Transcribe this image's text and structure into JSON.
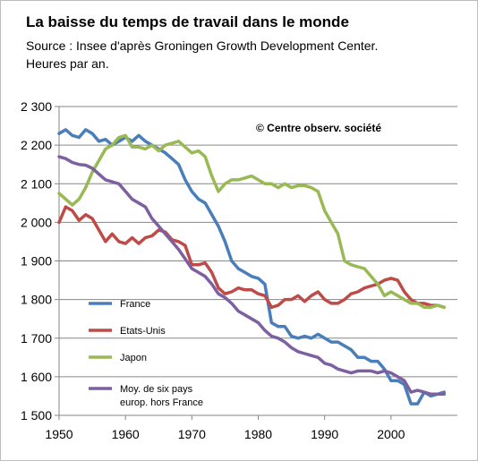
{
  "chart_data": {
    "type": "line",
    "title": "La baisse du temps de travail dans le monde",
    "subtitle_lines": [
      "Source : Insee d'après Groningen Growth  Development Center.",
      "Heures par an."
    ],
    "annotation": "© Centre observ. société",
    "xlabel": "",
    "ylabel": "",
    "xlim": [
      1950,
      2010
    ],
    "ylim": [
      1500,
      2300
    ],
    "x_ticks": [
      1950,
      1960,
      1970,
      1980,
      1990,
      2000
    ],
    "y_ticks": [
      1500,
      1600,
      1700,
      1800,
      1900,
      2000,
      2100,
      2200,
      2300
    ],
    "y_tick_labels": [
      "1 500",
      "1 600",
      "1 700",
      "1 800",
      "1 900",
      "2 000",
      "2 100",
      "2 200",
      "2 300"
    ],
    "x_tick_labels": [
      "1950",
      "1960",
      "1970",
      "1980",
      "1990",
      "2000"
    ],
    "grid": "horizontal",
    "legend_position": "bottom-left",
    "series": [
      {
        "name": "France",
        "color": "#4a7ebb",
        "x": [
          1950,
          1951,
          1952,
          1953,
          1954,
          1955,
          1956,
          1957,
          1958,
          1959,
          1960,
          1961,
          1962,
          1963,
          1964,
          1965,
          1966,
          1967,
          1968,
          1969,
          1970,
          1971,
          1972,
          1973,
          1974,
          1975,
          1976,
          1977,
          1978,
          1979,
          1980,
          1981,
          1982,
          1983,
          1984,
          1985,
          1986,
          1987,
          1988,
          1989,
          1990,
          1991,
          1992,
          1993,
          1994,
          1995,
          1996,
          1997,
          1998,
          1999,
          2000,
          2001,
          2002,
          2003,
          2004,
          2005,
          2006,
          2007,
          2008
        ],
        "values": [
          2230,
          2240,
          2225,
          2220,
          2240,
          2230,
          2210,
          2215,
          2200,
          2210,
          2220,
          2210,
          2225,
          2210,
          2200,
          2190,
          2180,
          2165,
          2150,
          2110,
          2080,
          2060,
          2050,
          2020,
          1990,
          1950,
          1900,
          1880,
          1870,
          1860,
          1855,
          1840,
          1740,
          1730,
          1730,
          1705,
          1700,
          1705,
          1700,
          1710,
          1700,
          1690,
          1690,
          1680,
          1670,
          1650,
          1650,
          1640,
          1640,
          1620,
          1590,
          1590,
          1580,
          1530,
          1530,
          1560,
          1550,
          1555,
          1560
        ]
      },
      {
        "name": "Etats-Unis",
        "color": "#be4b48",
        "x": [
          1950,
          1951,
          1952,
          1953,
          1954,
          1955,
          1956,
          1957,
          1958,
          1959,
          1960,
          1961,
          1962,
          1963,
          1964,
          1965,
          1966,
          1967,
          1968,
          1969,
          1970,
          1971,
          1972,
          1973,
          1974,
          1975,
          1976,
          1977,
          1978,
          1979,
          1980,
          1981,
          1982,
          1983,
          1984,
          1985,
          1986,
          1987,
          1988,
          1989,
          1990,
          1991,
          1992,
          1993,
          1994,
          1995,
          1996,
          1997,
          1998,
          1999,
          2000,
          2001,
          2002,
          2003,
          2004,
          2005,
          2006,
          2007,
          2008
        ],
        "values": [
          2000,
          2040,
          2030,
          2005,
          2020,
          2010,
          1980,
          1950,
          1970,
          1950,
          1945,
          1960,
          1945,
          1960,
          1965,
          1980,
          1975,
          1955,
          1950,
          1940,
          1890,
          1890,
          1895,
          1870,
          1830,
          1815,
          1820,
          1830,
          1825,
          1825,
          1815,
          1810,
          1780,
          1785,
          1800,
          1800,
          1810,
          1795,
          1810,
          1820,
          1800,
          1790,
          1790,
          1800,
          1815,
          1820,
          1830,
          1835,
          1840,
          1850,
          1855,
          1850,
          1820,
          1800,
          1790,
          1790,
          1785,
          1785,
          1780
        ]
      },
      {
        "name": "Japon",
        "color": "#98b954",
        "x": [
          1950,
          1951,
          1952,
          1953,
          1954,
          1955,
          1956,
          1957,
          1958,
          1959,
          1960,
          1961,
          1962,
          1963,
          1964,
          1965,
          1966,
          1967,
          1968,
          1969,
          1970,
          1971,
          1972,
          1973,
          1974,
          1975,
          1976,
          1977,
          1978,
          1979,
          1980,
          1981,
          1982,
          1983,
          1984,
          1985,
          1986,
          1987,
          1988,
          1989,
          1990,
          1991,
          1992,
          1993,
          1994,
          1995,
          1996,
          1997,
          1998,
          1999,
          2000,
          2001,
          2002,
          2003,
          2004,
          2005,
          2006,
          2007,
          2008
        ],
        "values": [
          2075,
          2060,
          2045,
          2060,
          2090,
          2130,
          2160,
          2190,
          2200,
          2220,
          2225,
          2195,
          2195,
          2190,
          2200,
          2185,
          2200,
          2205,
          2210,
          2195,
          2180,
          2185,
          2170,
          2120,
          2080,
          2100,
          2110,
          2110,
          2115,
          2120,
          2110,
          2100,
          2100,
          2090,
          2100,
          2090,
          2095,
          2095,
          2090,
          2080,
          2030,
          2000,
          1970,
          1900,
          1890,
          1885,
          1880,
          1860,
          1840,
          1810,
          1820,
          1810,
          1800,
          1790,
          1790,
          1780,
          1780,
          1785,
          1780
        ]
      },
      {
        "name": "Moy. de six pays europ. hors France",
        "legend_lines": [
          "Moy. de six pays",
          "europ. hors France"
        ],
        "color": "#7d60a0",
        "x": [
          1950,
          1951,
          1952,
          1953,
          1954,
          1955,
          1956,
          1957,
          1958,
          1959,
          1960,
          1961,
          1962,
          1963,
          1964,
          1965,
          1966,
          1967,
          1968,
          1969,
          1970,
          1971,
          1972,
          1973,
          1974,
          1975,
          1976,
          1977,
          1978,
          1979,
          1980,
          1981,
          1982,
          1983,
          1984,
          1985,
          1986,
          1987,
          1988,
          1989,
          1990,
          1991,
          1992,
          1993,
          1994,
          1995,
          1996,
          1997,
          1998,
          1999,
          2000,
          2001,
          2002,
          2003,
          2004,
          2005,
          2006,
          2007,
          2008
        ],
        "values": [
          2170,
          2165,
          2155,
          2150,
          2148,
          2140,
          2125,
          2110,
          2105,
          2100,
          2080,
          2060,
          2050,
          2040,
          2010,
          1990,
          1970,
          1950,
          1930,
          1905,
          1880,
          1870,
          1860,
          1840,
          1815,
          1805,
          1790,
          1770,
          1760,
          1750,
          1740,
          1720,
          1705,
          1700,
          1690,
          1675,
          1665,
          1660,
          1655,
          1650,
          1635,
          1630,
          1620,
          1615,
          1610,
          1615,
          1615,
          1615,
          1610,
          1615,
          1610,
          1600,
          1590,
          1560,
          1565,
          1560,
          1555,
          1555,
          1555
        ]
      }
    ]
  }
}
